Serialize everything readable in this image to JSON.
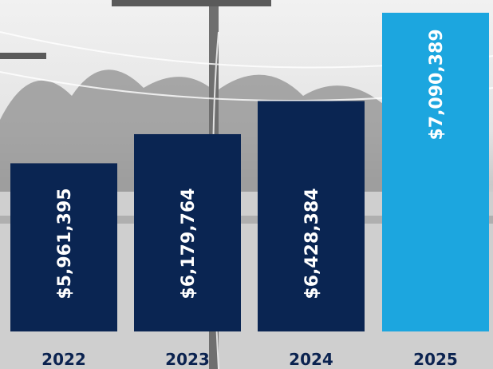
{
  "chart_data": {
    "type": "bar",
    "categories": [
      "2022",
      "2023",
      "2024",
      "2025"
    ],
    "values": [
      5961395,
      6179764,
      6428384,
      7090389
    ],
    "value_labels": [
      "$5,961,395",
      "$6,179,764",
      "$6,428,384",
      "$7,090,389"
    ],
    "ylim": [
      4700000,
      7150000
    ],
    "grid": false,
    "legend": "none",
    "title": "",
    "xlabel": "",
    "ylabel": "",
    "colors": {
      "bars": [
        "#0a2552",
        "#0a2552",
        "#0a2552",
        "#1ca6df"
      ],
      "year_text": "#0b2350",
      "value_text": "#ffffff"
    }
  }
}
